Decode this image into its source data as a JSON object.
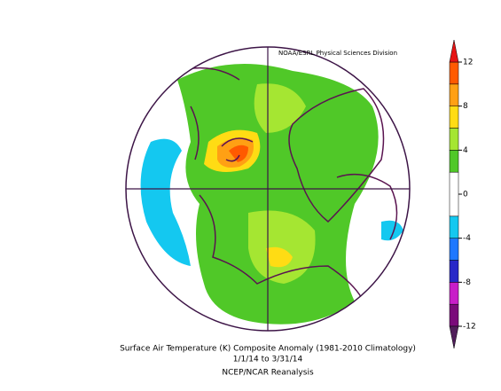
{
  "credit": "NOAA/ESRL Physical Sciences Division",
  "caption": {
    "line1": "Surface Air Temperature (K) Composite Anomaly (1981-2010 Climatology)",
    "line2": "1/1/14  to 3/31/14",
    "line3": "NCEP/NCAR Reanalysis"
  },
  "colorbar": {
    "lim": [
      -12,
      12
    ],
    "ticks": [
      12,
      8,
      4,
      0,
      -4,
      -8,
      -12
    ],
    "levels": [
      -12,
      -10,
      -8,
      -6,
      -4,
      -2,
      2,
      4,
      6,
      8,
      10,
      12
    ],
    "colors": [
      "#7a0a7a",
      "#c81ec8",
      "#2828c8",
      "#1e78ff",
      "#14c8f0",
      "#ffffff",
      "#50c828",
      "#a5e632",
      "#ffdc14",
      "#ffa014",
      "#ff5a00"
    ],
    "under_color": "#501e5a",
    "over_color": "#e61414"
  }
}
